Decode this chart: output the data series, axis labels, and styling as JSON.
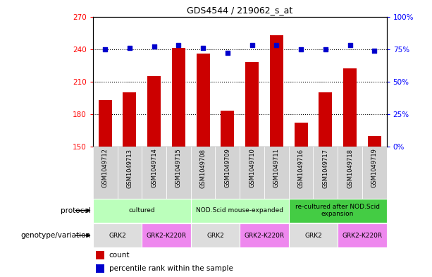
{
  "title": "GDS4544 / 219062_s_at",
  "samples": [
    "GSM1049712",
    "GSM1049713",
    "GSM1049714",
    "GSM1049715",
    "GSM1049708",
    "GSM1049709",
    "GSM1049710",
    "GSM1049711",
    "GSM1049716",
    "GSM1049717",
    "GSM1049718",
    "GSM1049719"
  ],
  "counts": [
    193,
    200,
    215,
    241,
    236,
    183,
    228,
    253,
    172,
    200,
    222,
    160
  ],
  "percentiles": [
    75,
    76,
    77,
    78,
    76,
    72,
    78,
    78,
    75,
    75,
    78,
    74
  ],
  "ylim_left": [
    150,
    270
  ],
  "ylim_right": [
    0,
    100
  ],
  "yticks_left": [
    150,
    180,
    210,
    240,
    270
  ],
  "yticks_right": [
    0,
    25,
    50,
    75,
    100
  ],
  "ytick_labels_right": [
    "0%",
    "25%",
    "50%",
    "75%",
    "100%"
  ],
  "bar_color": "#cc0000",
  "dot_color": "#0000cc",
  "protocol_colors": [
    "#bbffbb",
    "#bbffbb",
    "#44cc44"
  ],
  "protocol_labels": [
    "cultured",
    "NOD.Scid mouse-expanded",
    "re-cultured after NOD.Scid\nexpansion"
  ],
  "protocol_starts": [
    0,
    4,
    8
  ],
  "protocol_ends": [
    4,
    8,
    12
  ],
  "geno_colors": [
    "#dddddd",
    "#ee88ee",
    "#dddddd",
    "#ee88ee",
    "#dddddd",
    "#ee88ee"
  ],
  "geno_labels": [
    "GRK2",
    "GRK2-K220R",
    "GRK2",
    "GRK2-K220R",
    "GRK2",
    "GRK2-K220R"
  ],
  "geno_starts": [
    0,
    2,
    4,
    6,
    8,
    10
  ],
  "geno_ends": [
    2,
    4,
    6,
    8,
    10,
    12
  ],
  "legend_count_color": "#cc0000",
  "legend_dot_color": "#0000cc",
  "bg_color": "#ffffff"
}
